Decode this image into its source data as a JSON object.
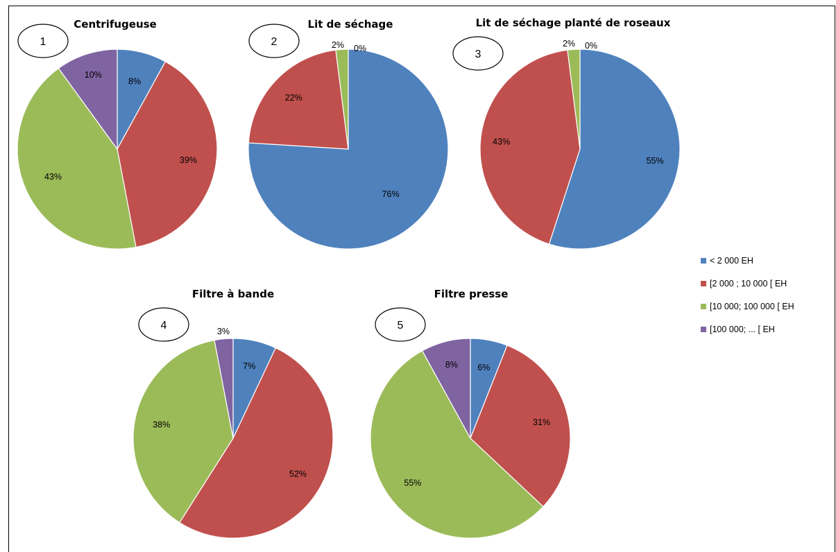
{
  "legend": {
    "items": [
      {
        "label": "< 2 000 EH",
        "color": "#4F81BD"
      },
      {
        "label": "[2 000 ; 10 000 [ EH",
        "color": "#C0504D"
      },
      {
        "label": "[10 000; 100 000 [ EH",
        "color": "#9BBB59"
      },
      {
        "label": "[100 000; ... [ EH",
        "color": "#8064A2"
      }
    ]
  },
  "chart_data": [
    {
      "type": "pie",
      "title": "Centrifugeuse",
      "number": "1",
      "categories": [
        "< 2 000 EH",
        "[2 000 ; 10 000 [ EH",
        "[10 000; 100 000 [ EH",
        "[100 000; ... [ EH"
      ],
      "values": [
        8,
        39,
        43,
        10
      ],
      "labels": [
        "8%",
        "39%",
        "43%",
        "10%"
      ]
    },
    {
      "type": "pie",
      "title": "Lit de séchage",
      "number": "2",
      "categories": [
        "< 2 000 EH",
        "[2 000 ; 10 000 [ EH",
        "[10 000; 100 000 [ EH",
        "[100 000; ... [ EH"
      ],
      "values": [
        76,
        22,
        2,
        0
      ],
      "labels": [
        "76%",
        "22%",
        "2%",
        "0%"
      ]
    },
    {
      "type": "pie",
      "title": "Lit de séchage planté de roseaux",
      "number": "3",
      "categories": [
        "< 2 000 EH",
        "[2 000 ; 10 000 [ EH",
        "[10 000; 100 000 [ EH",
        "[100 000; ... [ EH"
      ],
      "values": [
        55,
        43,
        2,
        0
      ],
      "labels": [
        "55%",
        "43%",
        "2%",
        "0%"
      ]
    },
    {
      "type": "pie",
      "title": "Filtre à bande",
      "number": "4",
      "categories": [
        "< 2 000 EH",
        "[2 000 ; 10 000 [ EH",
        "[10 000; 100 000 [ EH",
        "[100 000; ... [ EH"
      ],
      "values": [
        7,
        52,
        38,
        3
      ],
      "labels": [
        "7%",
        "52%",
        "38%",
        "3%"
      ]
    },
    {
      "type": "pie",
      "title": "Filtre presse",
      "number": "5",
      "categories": [
        "< 2 000 EH",
        "[2 000 ; 10 000 [ EH",
        "[10 000; 100 000 [ EH",
        "[100 000; ... [ EH"
      ],
      "values": [
        6,
        31,
        55,
        8
      ],
      "labels": [
        "6%",
        "31%",
        "55%",
        "8%"
      ]
    }
  ]
}
